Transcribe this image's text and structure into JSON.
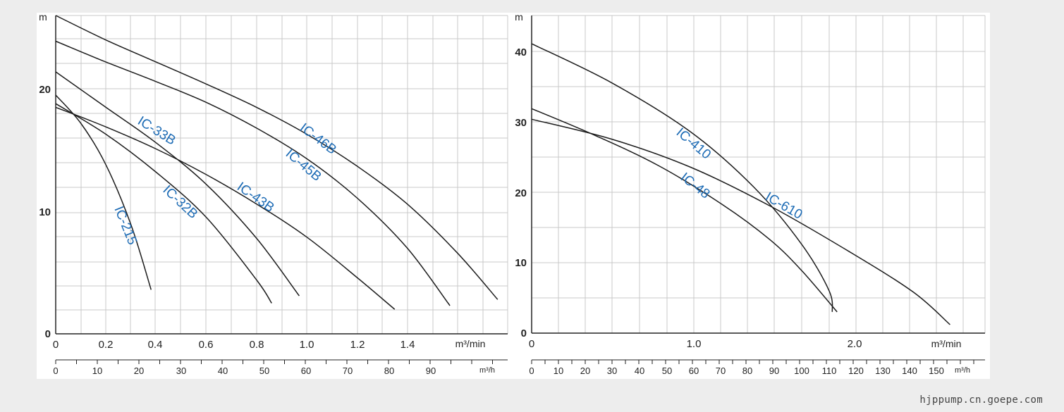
{
  "chart_data": [
    {
      "type": "line",
      "y_unit": "m",
      "x_unit": "m³/min",
      "x2_unit": "m³/h",
      "xlim": [
        0,
        1.8
      ],
      "ylim": [
        0,
        26
      ],
      "x_ticks": [
        "0",
        "0.2",
        "0.4",
        "0.6",
        "0.8",
        "1.0",
        "1.2",
        "1.4"
      ],
      "y_ticks": [
        "0",
        "10",
        "20"
      ],
      "x2_ticks": [
        "0",
        "10",
        "20",
        "30",
        "40",
        "50",
        "60",
        "70",
        "80",
        "90"
      ],
      "grid": true,
      "series": [
        {
          "name": "IC-215",
          "x": [
            0,
            0.1,
            0.2,
            0.3,
            0.38
          ],
          "y": [
            19.5,
            17.2,
            13.8,
            8.9,
            3.6
          ]
        },
        {
          "name": "IC-32B",
          "x": [
            0,
            0.2,
            0.4,
            0.6,
            0.8,
            0.86
          ],
          "y": [
            18.8,
            16.3,
            13.2,
            9.5,
            4.4,
            2.5
          ]
        },
        {
          "name": "IC-33B",
          "x": [
            0,
            0.2,
            0.4,
            0.6,
            0.8,
            0.97
          ],
          "y": [
            21.4,
            18.5,
            15.6,
            12.2,
            7.8,
            3.1
          ]
        },
        {
          "name": "IC-43B",
          "x": [
            0,
            0.2,
            0.4,
            0.6,
            0.8,
            1.0,
            1.2,
            1.35
          ],
          "y": [
            18.5,
            16.9,
            15.1,
            13.0,
            10.6,
            7.9,
            4.6,
            2.0
          ]
        },
        {
          "name": "IC-45B",
          "x": [
            0,
            0.2,
            0.4,
            0.6,
            0.8,
            1.0,
            1.2,
            1.4,
            1.57
          ],
          "y": [
            23.9,
            22.2,
            20.6,
            18.9,
            16.8,
            14.3,
            11.1,
            7.0,
            2.3
          ]
        },
        {
          "name": "IC-46B",
          "x": [
            0,
            0.2,
            0.4,
            0.6,
            0.8,
            1.0,
            1.2,
            1.4,
            1.6,
            1.76
          ],
          "y": [
            26.0,
            24.0,
            22.2,
            20.4,
            18.5,
            16.3,
            13.7,
            10.6,
            6.6,
            2.8
          ]
        }
      ]
    },
    {
      "type": "line",
      "y_unit": "m",
      "x_unit": "m³/min",
      "x2_unit": "m³/h",
      "xlim": [
        0,
        2.85
      ],
      "ylim": [
        0,
        45
      ],
      "x_ticks": [
        "0",
        "1.0",
        "2.0"
      ],
      "y_ticks": [
        "0",
        "10",
        "20",
        "30",
        "40"
      ],
      "x2_ticks": [
        "0",
        "10",
        "20",
        "30",
        "40",
        "50",
        "60",
        "70",
        "80",
        "90",
        "100",
        "110",
        "120",
        "130",
        "140",
        "150"
      ],
      "grid": true,
      "series": [
        {
          "name": "IC-410",
          "x": [
            0,
            0.5,
            1.0,
            1.4,
            1.7,
            1.87,
            1.89
          ],
          "y": [
            41,
            35.5,
            28.5,
            20.6,
            12.5,
            6.0,
            3.0
          ]
        },
        {
          "name": "IC-48",
          "x": [
            0,
            0.4,
            0.8,
            1.2,
            1.5,
            1.7,
            1.92
          ],
          "y": [
            31.8,
            28.0,
            23.7,
            18.2,
            13.2,
            8.8,
            3.0
          ]
        },
        {
          "name": "IC-610",
          "x": [
            0,
            0.5,
            1.0,
            1.5,
            2.0,
            2.4,
            2.63
          ],
          "y": [
            30.3,
            27.5,
            23.5,
            18.0,
            11.5,
            5.8,
            1.2
          ]
        }
      ]
    }
  ],
  "footer": {
    "watermark": "hjppump.cn.goepe.com"
  },
  "colors": {
    "curve": "#1c1c1c",
    "label": "#1e6cb5",
    "grid": "#c9c9c9",
    "axis": "#222222"
  }
}
